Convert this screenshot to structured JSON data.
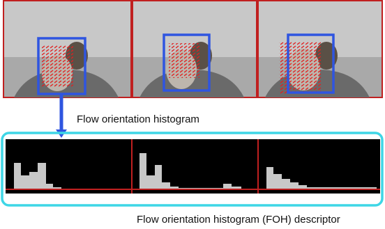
{
  "annotations": {
    "step_label": "Flow orientation histogram",
    "result_label": "Flow orientation histogram (FOH) descriptor"
  }
}
